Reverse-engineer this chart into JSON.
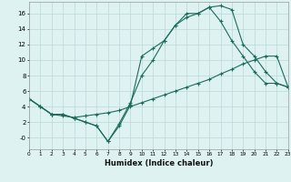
{
  "xlabel": "Humidex (Indice chaleur)",
  "bg_color": "#dff2f2",
  "grid_color": "#b8d8d8",
  "line_color": "#1a6b5a",
  "line1_x": [
    0,
    1,
    2,
    3,
    4,
    5,
    6,
    7,
    8,
    9,
    10,
    11,
    12,
    13,
    14,
    15,
    16,
    17,
    18,
    19,
    20,
    21,
    22,
    23
  ],
  "line1_y": [
    5,
    4,
    3,
    3,
    2.5,
    2,
    1.5,
    -0.5,
    1.5,
    4.2,
    10.5,
    11.5,
    12.5,
    14.5,
    16,
    16,
    16.8,
    17,
    16.5,
    12,
    10.5,
    8.5,
    7,
    6.5
  ],
  "line2_x": [
    0,
    1,
    2,
    3,
    4,
    5,
    6,
    7,
    8,
    9,
    10,
    11,
    12,
    13,
    14,
    15,
    16,
    17,
    18,
    19,
    20,
    21,
    22,
    23
  ],
  "line2_y": [
    5,
    4,
    3,
    2.8,
    2.6,
    2.8,
    3.0,
    3.2,
    3.5,
    4.0,
    4.5,
    5.0,
    5.5,
    6.0,
    6.5,
    7.0,
    7.5,
    8.2,
    8.8,
    9.5,
    10.0,
    10.5,
    10.5,
    6.5
  ],
  "line3_x": [
    0,
    1,
    2,
    3,
    4,
    5,
    6,
    7,
    8,
    9,
    10,
    11,
    12,
    13,
    14,
    15,
    16,
    17,
    18,
    19,
    20,
    21,
    22,
    23
  ],
  "line3_y": [
    5,
    4,
    3,
    3,
    2.5,
    2,
    1.5,
    -0.5,
    1.8,
    4.5,
    8,
    10,
    12.5,
    14.5,
    15.5,
    16,
    16.8,
    15,
    12.5,
    10.5,
    8.5,
    7,
    7,
    6.5
  ],
  "ylim": [
    -1.5,
    17.5
  ],
  "xlim": [
    0,
    23
  ],
  "yticks": [
    0,
    2,
    4,
    6,
    8,
    10,
    12,
    14,
    16
  ],
  "ytick_labels": [
    "-0",
    "2",
    "4",
    "6",
    "8",
    "10",
    "12",
    "14",
    "16"
  ],
  "xticks": [
    0,
    1,
    2,
    3,
    4,
    5,
    6,
    7,
    8,
    9,
    10,
    11,
    12,
    13,
    14,
    15,
    16,
    17,
    18,
    19,
    20,
    21,
    22,
    23
  ],
  "marker": "+"
}
